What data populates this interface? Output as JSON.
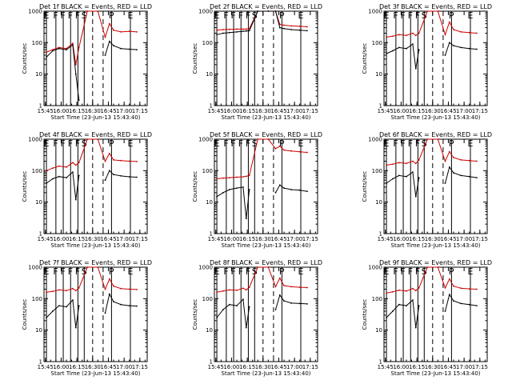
{
  "chart_data": {
    "common": {
      "type": "line",
      "x_unit": "time (hh:mm), 23-Jun-13",
      "xlim": [
        "15:43:40",
        "17:22"
      ],
      "x_ticks": [
        "15:45",
        "16:00",
        "16:15",
        "16:30",
        "16:45",
        "17:00",
        "17:15"
      ],
      "ylim": [
        1,
        1000
      ],
      "y_scale": "log",
      "y_ticks": [
        "1",
        "10",
        "100",
        "1000"
      ],
      "ylabel": "Counts/sec",
      "xlabel": "Start Time (23-Jun-13 15:43:40)",
      "grid": false,
      "colors": {
        "events": "#000000",
        "lld": "#cc0000",
        "axes": "#000000"
      },
      "vertical_markers": [
        {
          "label": "E",
          "x": "15:46",
          "style": "solid"
        },
        {
          "label": "F",
          "x": "15:55",
          "style": "solid"
        },
        {
          "label": "F",
          "x": "16:02",
          "style": "solid"
        },
        {
          "label": "F",
          "x": "16:09",
          "style": "solid"
        },
        {
          "label": "F",
          "x": "16:16",
          "style": "solid"
        },
        {
          "label": "S",
          "x": "16:22",
          "style": "solid"
        },
        {
          "label": "",
          "x": "16:30",
          "style": "dashed"
        },
        {
          "label": "",
          "x": "16:40",
          "style": "dashed"
        },
        {
          "label": "P",
          "x": "16:48",
          "style": "solid"
        },
        {
          "label": "E",
          "x": "17:06",
          "style": "solid"
        }
      ],
      "series_x": [
        "15:46",
        "15:52",
        "15:58",
        "16:05",
        "16:11",
        "16:14",
        "16:17",
        "16:25",
        "16:35",
        "16:42",
        "16:46",
        "16:50",
        "16:57",
        "17:05",
        "17:12"
      ]
    },
    "panels": [
      {
        "title": "Det  1f BLACK = Events, RED = LLD",
        "series": [
          {
            "values": [
              50,
              60,
              70,
              65,
              95,
              20,
              70,
              1000,
              1000,
              150,
              400,
              250,
              220,
              230,
              220
            ]
          },
          {
            "values": [
              35,
              55,
              65,
              60,
              85,
              10,
              1.5,
              null,
              null,
              40,
              110,
              80,
              65,
              62,
              60
            ]
          }
        ]
      },
      {
        "title": "Det  2f BLACK = Events, RED = LLD",
        "series": [
          {
            "values": [
              250,
              260,
              265,
              270,
              270,
              270,
              280,
              1000,
              1000,
              1000,
              380,
              360,
              340,
              330,
              320
            ]
          },
          {
            "values": [
              180,
              200,
              210,
              220,
              230,
              235,
              240,
              1000,
              1000,
              1000,
              300,
              280,
              260,
              250,
              240
            ]
          }
        ]
      },
      {
        "title": "Det  3f BLACK = Events, RED = LLD",
        "series": [
          {
            "values": [
              150,
              160,
              180,
              170,
              200,
              170,
              200,
              1000,
              1000,
              180,
              450,
              260,
              220,
              210,
              200
            ]
          },
          {
            "values": [
              45,
              55,
              70,
              65,
              90,
              15,
              60,
              null,
              null,
              40,
              100,
              80,
              70,
              65,
              62
            ]
          }
        ]
      },
      {
        "title": "Det  4f BLACK = Events, RED = LLD",
        "series": [
          {
            "values": [
              100,
              120,
              140,
              130,
              180,
              150,
              180,
              1000,
              1000,
              200,
              350,
              220,
              210,
              200,
              195
            ]
          },
          {
            "values": [
              40,
              55,
              65,
              60,
              90,
              12,
              70,
              null,
              null,
              50,
              100,
              75,
              68,
              64,
              62
            ]
          }
        ]
      },
      {
        "title": "Det  5f BLACK = Events, RED = LLD",
        "series": [
          {
            "values": [
              55,
              58,
              60,
              62,
              64,
              66,
              70,
              1000,
              1000,
              500,
              600,
              450,
              420,
              400,
              380
            ]
          },
          {
            "values": [
              15,
              20,
              25,
              28,
              30,
              3,
              25,
              null,
              null,
              20,
              35,
              28,
              25,
              24,
              22
            ]
          }
        ]
      },
      {
        "title": "Det  6f BLACK = Events, RED = LLD",
        "series": [
          {
            "values": [
              150,
              160,
              180,
              170,
              200,
              170,
              220,
              1000,
              1000,
              200,
              400,
              260,
              220,
              210,
              200
            ]
          },
          {
            "values": [
              40,
              55,
              70,
              65,
              90,
              15,
              60,
              null,
              null,
              40,
              130,
              85,
              70,
              65,
              60
            ]
          }
        ]
      },
      {
        "title": "Det  7f BLACK = Events, RED = LLD",
        "series": [
          {
            "values": [
              160,
              170,
              190,
              180,
              210,
              180,
              220,
              1000,
              1000,
              200,
              420,
              250,
              210,
              200,
              195
            ]
          },
          {
            "values": [
              25,
              40,
              60,
              55,
              90,
              12,
              60,
              null,
              null,
              35,
              140,
              80,
              65,
              60,
              58
            ]
          }
        ]
      },
      {
        "title": "Det  8f BLACK = Events, RED = LLD",
        "series": [
          {
            "values": [
              160,
              175,
              190,
              185,
              215,
              190,
              230,
              1000,
              1000,
              240,
              450,
              260,
              240,
              230,
              225
            ]
          },
          {
            "values": [
              25,
              45,
              65,
              60,
              95,
              12,
              55,
              null,
              null,
              45,
              130,
              85,
              72,
              70,
              68
            ]
          }
        ]
      },
      {
        "title": "Det  9f BLACK = Events, RED = LLD",
        "series": [
          {
            "values": [
              150,
              165,
              185,
              175,
              210,
              180,
              220,
              1000,
              1000,
              220,
              420,
              250,
              215,
              205,
              200
            ]
          },
          {
            "values": [
              25,
              40,
              65,
              60,
              90,
              12,
              60,
              null,
              null,
              40,
              135,
              85,
              70,
              65,
              60
            ]
          }
        ]
      }
    ]
  }
}
